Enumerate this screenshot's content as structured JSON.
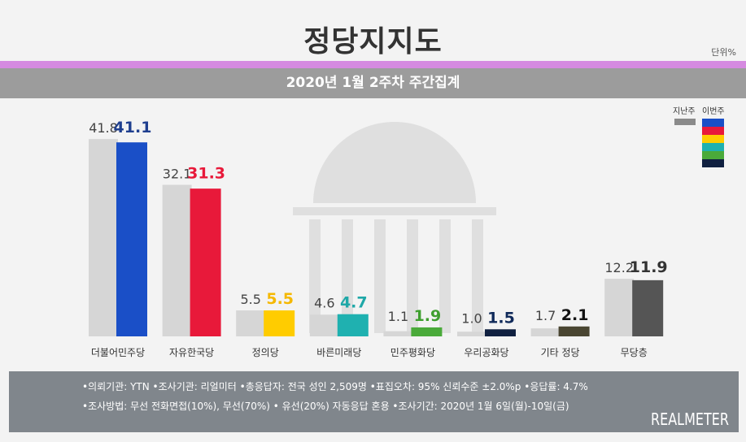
{
  "header": {
    "title": "정당지지도",
    "unit": "단위%",
    "subtitle": "2020년 1월 2주차 주간집계"
  },
  "legend": {
    "prev_label": "지난주",
    "cur_label": "이번주",
    "prev_color": "#8a8a8a",
    "cur_colors": [
      "#1a4fc7",
      "#e8193a",
      "#ffcc00",
      "#1fb1b0",
      "#4aaa3a",
      "#102040"
    ]
  },
  "chart_data": {
    "type": "bar",
    "categories": [
      "더불어민주당",
      "자유한국당",
      "정의당",
      "바른미래당",
      "민주평화당",
      "우리공화당",
      "기타 정당",
      "무당층"
    ],
    "series": [
      {
        "name": "지난주",
        "values": [
          41.8,
          32.1,
          5.5,
          4.6,
          1.1,
          1.0,
          1.7,
          12.2
        ],
        "color": "#d6d6d6"
      },
      {
        "name": "이번주",
        "values": [
          41.1,
          31.3,
          5.5,
          4.7,
          1.9,
          1.5,
          2.1,
          11.9
        ],
        "colors": [
          "#1a4fc7",
          "#e8193a",
          "#ffcc00",
          "#1fb1b0",
          "#4aaa3a",
          "#102040",
          "#4a4632",
          "#555555"
        ],
        "label_colors": [
          "#1f3f8f",
          "#e8193a",
          "#f5b800",
          "#1fa8a8",
          "#3f9f2f",
          "#102a5a",
          "#111111",
          "#333333"
        ]
      }
    ],
    "ylim": [
      0,
      45
    ]
  },
  "footer": {
    "line1": "•의뢰기관: YTN •조사기관: 리얼미터 •총응답자: 전국 성인 2,509명 •표집오차: 95% 신뢰수준 ±2.0%p •응답률: 4.7%",
    "line2": "•조사방법: 무선 전화면접(10%), 무선(70%) • 유선(20%) 자동응답 혼용  •조사기간: 2020년 1월 6일(월)-10일(금)",
    "brand": "REALMETER"
  }
}
